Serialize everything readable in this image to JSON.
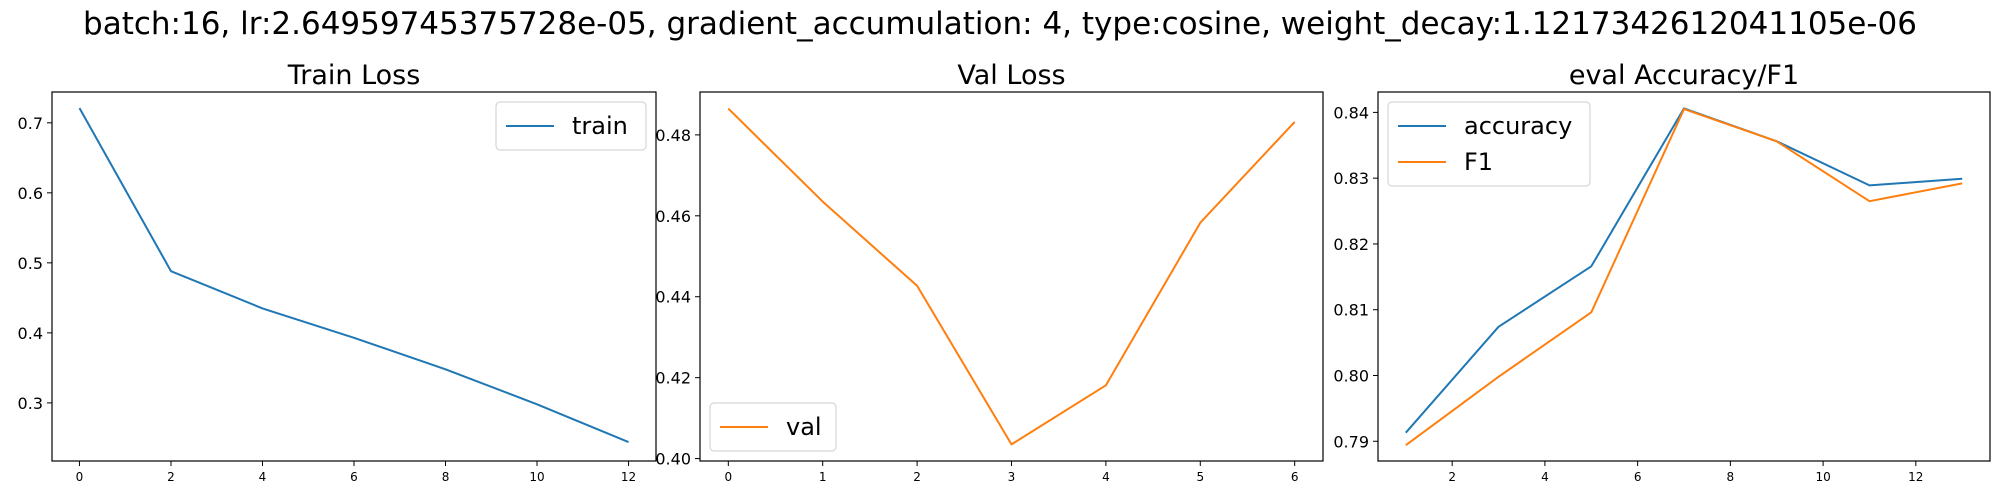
{
  "suptitle": "batch:16, lr:2.64959745375728e-05, gradient_accumulation: 4, type:cosine, weight_decay:1.1217342612041105e-06",
  "colors": {
    "blue": "#1f77b4",
    "orange": "#ff7f0e"
  },
  "chart_data": [
    {
      "type": "line",
      "title": "Train Loss",
      "xlabel": "",
      "ylabel": "",
      "xlim": [
        -0.6,
        12.6
      ],
      "ylim": [
        0.217,
        0.744
      ],
      "xticks": [
        0,
        2,
        4,
        6,
        8,
        10,
        12
      ],
      "xtick_labels": [
        "0",
        "2",
        "4",
        "6",
        "8",
        "10",
        "12"
      ],
      "yticks": [
        0.3,
        0.4,
        0.5,
        0.6,
        0.7
      ],
      "ytick_labels": [
        "0.3",
        "0.4",
        "0.5",
        "0.6",
        "0.7"
      ],
      "legend": "upper right",
      "series": [
        {
          "name": "train",
          "color": "#1f77b4",
          "x": [
            0,
            2,
            4,
            6,
            8,
            10,
            12
          ],
          "y": [
            0.721,
            0.488,
            0.435,
            0.393,
            0.348,
            0.298,
            0.244
          ]
        }
      ]
    },
    {
      "type": "line",
      "title": "Val Loss",
      "xlabel": "",
      "ylabel": "",
      "xlim": [
        -0.3,
        6.3
      ],
      "ylim": [
        0.3994,
        0.4906
      ],
      "xticks": [
        0,
        1,
        2,
        3,
        4,
        5,
        6
      ],
      "xtick_labels": [
        "0",
        "1",
        "2",
        "3",
        "4",
        "5",
        "6"
      ],
      "yticks": [
        0.4,
        0.42,
        0.44,
        0.46,
        0.48
      ],
      "ytick_labels": [
        "0.40",
        "0.42",
        "0.44",
        "0.46",
        "0.48"
      ],
      "legend": "lower left",
      "series": [
        {
          "name": "val",
          "color": "#ff7f0e",
          "x": [
            0,
            1,
            2,
            3,
            4,
            5,
            6
          ],
          "y": [
            0.4865,
            0.4635,
            0.4427,
            0.4035,
            0.4181,
            0.4583,
            0.4832
          ]
        }
      ]
    },
    {
      "type": "line",
      "title": "eval Accuracy/F1",
      "xlabel": "",
      "ylabel": "",
      "xlim": [
        0.4,
        13.6
      ],
      "ylim": [
        0.787,
        0.8431
      ],
      "xticks": [
        2,
        4,
        6,
        8,
        10,
        12
      ],
      "xtick_labels": [
        "2",
        "4",
        "6",
        "8",
        "10",
        "12"
      ],
      "yticks": [
        0.79,
        0.8,
        0.81,
        0.82,
        0.83,
        0.84
      ],
      "ytick_labels": [
        "0.79",
        "0.80",
        "0.81",
        "0.82",
        "0.83",
        "0.84"
      ],
      "legend": "upper left",
      "series": [
        {
          "name": "accuracy",
          "color": "#1f77b4",
          "x": [
            1,
            3,
            5,
            7,
            9,
            11,
            13
          ],
          "y": [
            0.7913,
            0.8074,
            0.8166,
            0.8406,
            0.8356,
            0.8289,
            0.8299
          ]
        },
        {
          "name": "F1",
          "color": "#ff7f0e",
          "x": [
            1,
            3,
            5,
            7,
            9,
            11,
            13
          ],
          "y": [
            0.7894,
            0.7998,
            0.8096,
            0.8405,
            0.8356,
            0.8265,
            0.8292
          ]
        }
      ]
    }
  ]
}
